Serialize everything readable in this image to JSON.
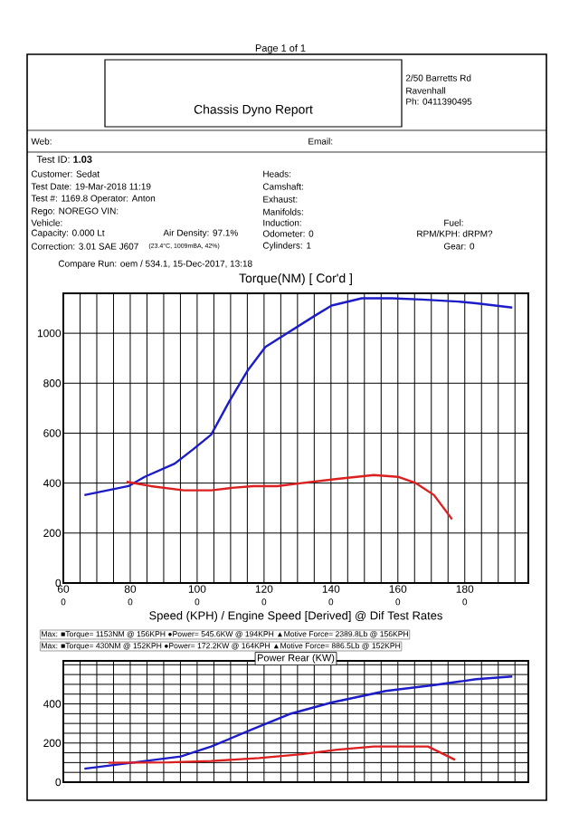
{
  "chart_data": [
    {
      "type": "other",
      "annotations": [
        "Page 1 of 1",
        "Chassis Dyno Report",
        "2/50 Barretts Rd",
        "Ravenhall",
        "Ph: 0411390495",
        "Web:",
        "Email:",
        "Test ID: **1.03**",
        "Customer: Sedat",
        "Test Date: 19-Mar-2018 11:19",
        "Test #: 1169.8   Operator: Anton",
        "Rego: NOREGO   VIN:",
        "Vehicle:",
        "Capacity: 0.000 Lt",
        "Air Density: 97.1%",
        "Correction: 3.01 SAE J607",
        "(23.4°C, 1009mBA, 42%)",
        "Heads:",
        "Camshaft:",
        "Exhaust:",
        "Manifolds:",
        "Induction:",
        "Odometer: 0",
        "Cylinders: 1",
        "Fuel:",
        "RPM/KPH: dRPM?",
        "Gear: 0",
        "Compare Run: oem / 534.1,   15-Dec-2017,   13:18"
      ]
    },
    {
      "type": "line",
      "title": "Torque(NM)     [ Cor'd ]",
      "xlabel": "Speed (KPH) / Engine Speed [Derived] @ Dif Test Rates",
      "xlim": [
        60,
        199
      ],
      "ylim": [
        0,
        1160
      ],
      "grid": true,
      "xticks": [
        60,
        {
          "value": 65,
          "label": null
        },
        {
          "value": 70,
          "label": null
        },
        {
          "value": 75,
          "label": null
        },
        80,
        {
          "value": 85,
          "label": null
        },
        {
          "value": 90,
          "label": null
        },
        {
          "value": 95,
          "label": null
        },
        100,
        {
          "value": 105,
          "label": null
        },
        {
          "value": 110,
          "label": null
        },
        {
          "value": 115,
          "label": null
        },
        120,
        {
          "value": 125,
          "label": null
        },
        {
          "value": 130,
          "label": null
        },
        {
          "value": 135,
          "label": null
        },
        140,
        {
          "value": 145,
          "label": null
        },
        {
          "value": 150,
          "label": null
        },
        {
          "value": 155,
          "label": null
        },
        160,
        {
          "value": 165,
          "label": null
        },
        {
          "value": 170,
          "label": null
        },
        {
          "value": 175,
          "label": null
        },
        180,
        {
          "value": 185,
          "label": null
        },
        {
          "value": 190,
          "label": null
        },
        {
          "value": 195,
          "label": null
        }
      ],
      "yticks": [
        0,
        200,
        400,
        600,
        800,
        1000
      ],
      "series": [
        {
          "color": "#1c1cc8",
          "x": [
            66.3,
            79.5,
            84.3,
            93.3,
            98.7,
            104.2,
            109.6,
            115,
            120.4,
            127.6,
            134.8,
            140.2,
            149.2,
            158.2,
            167.2,
            178,
            183.4,
            194.2
          ],
          "values": [
            352,
            388,
            425,
            478,
            534,
            594,
            727,
            849,
            945,
            1006,
            1067,
            1111,
            1140,
            1140,
            1135,
            1127,
            1120,
            1103
          ]
        },
        {
          "color": "#dc2020",
          "x": [
            78.9,
            86.1,
            96,
            104.2,
            110.4,
            116.8,
            124,
            131.2,
            141.9,
            152.8,
            160,
            165.4,
            170.8,
            176.2
          ],
          "values": [
            405,
            388,
            371,
            371,
            381,
            388,
            388,
            400,
            417,
            432,
            425,
            400,
            352,
            255
          ]
        }
      ],
      "annotations": [
        "Max:  ■Torque= 1153NM @ 156KPH   ●Power= 545.6KW @ 194KPH   ▲Motive Force= 2389.8Lb @ 156KPH",
        "Max:  ■Torque= 430NM @ 152KPH   ●Power= 172.2KW @ 164KPH   ▲Motive Force= 886.5Lb @ 152KPH",
        "0",
        "0",
        "0",
        "0",
        "0",
        "0",
        "0"
      ]
    },
    {
      "type": "line",
      "title": "Power Rear (KW)",
      "xlim": [
        60,
        199
      ],
      "ylim": [
        0,
        620
      ],
      "grid": true,
      "tick_labels": "y",
      "xticks": [
        60,
        65,
        70,
        75,
        80,
        85,
        90,
        95,
        100,
        105,
        110,
        115,
        120,
        125,
        130,
        135,
        140,
        145,
        150,
        155,
        160,
        165,
        170,
        175,
        180,
        185,
        190,
        195
      ],
      "yticks": [
        0,
        {
          "value": 50,
          "label": null
        },
        {
          "value": 100,
          "label": null
        },
        {
          "value": 150,
          "label": null
        },
        200,
        {
          "value": 250,
          "label": null
        },
        {
          "value": 300,
          "label": null
        },
        {
          "value": 350,
          "label": null
        },
        400,
        {
          "value": 450,
          "label": null
        },
        {
          "value": 500,
          "label": null
        },
        {
          "value": 550,
          "label": null
        },
        {
          "value": 600,
          "label": null
        }
      ],
      "series": [
        {
          "color": "#1c1cc8",
          "x": [
            66.3,
            77.1,
            95.1,
            104.2,
            116.8,
            127.6,
            140.2,
            156.4,
            170.8,
            183.4,
            194.2
          ],
          "values": [
            69,
            92,
            131,
            182,
            272,
            348,
            407,
            466,
            496,
            526,
            540
          ]
        },
        {
          "color": "#dc2020",
          "x": [
            73.5,
            91.5,
            104.2,
            118.5,
            131.2,
            141.9,
            152.8,
            169,
            174.4,
            177.1
          ],
          "values": [
            99,
            101,
            108,
            123,
            143,
            166,
            182,
            182,
            137,
            114
          ]
        }
      ]
    }
  ]
}
